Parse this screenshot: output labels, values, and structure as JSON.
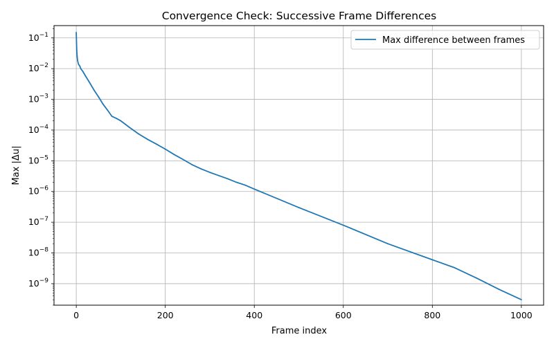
{
  "chart_data": {
    "type": "line",
    "title": "Convergence Check: Successive Frame Differences",
    "xlabel": "Frame index",
    "ylabel": "Max |Δu|",
    "xlim": [
      -50,
      1050
    ],
    "ylog_exp_range": [
      -9.7,
      -0.6
    ],
    "grid": true,
    "legend_position": "upper right",
    "x_ticks": [
      0,
      200,
      400,
      600,
      800,
      1000
    ],
    "y_tick_exponents": [
      -1,
      -2,
      -3,
      -4,
      -5,
      -6,
      -7,
      -8,
      -9
    ],
    "series": [
      {
        "name": "Max difference between frames",
        "color": "#1f77b4",
        "x": [
          0,
          1,
          2,
          3,
          5,
          8,
          10,
          15,
          20,
          30,
          40,
          50,
          60,
          70,
          80,
          90,
          100,
          120,
          140,
          160,
          180,
          200,
          220,
          240,
          260,
          280,
          300,
          320,
          340,
          360,
          380,
          400,
          500,
          600,
          700,
          800,
          850,
          900,
          950,
          1000
        ],
        "y": [
          0.15,
          0.04,
          0.025,
          0.018,
          0.014,
          0.012,
          0.01,
          0.008,
          0.006,
          0.0035,
          0.002,
          0.0012,
          0.0007,
          0.00045,
          0.00028,
          0.00024,
          0.0002,
          0.00012,
          7.5e-05,
          5e-05,
          3.5e-05,
          2.4e-05,
          1.6e-05,
          1.1e-05,
          7.5e-06,
          5.5e-06,
          4.2e-06,
          3.3e-06,
          2.6e-06,
          2e-06,
          1.6e-06,
          1.2e-06,
          3e-07,
          8e-08,
          2e-08,
          6e-09,
          3.3e-09,
          1.5e-09,
          6.5e-10,
          3e-10
        ]
      }
    ]
  }
}
